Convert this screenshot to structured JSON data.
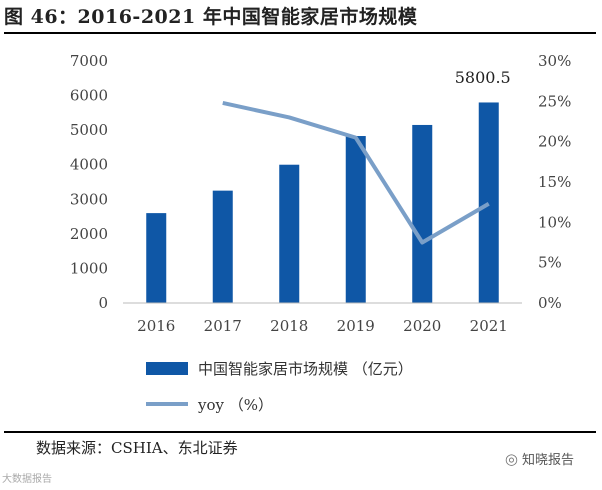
{
  "figure_title": "图 46：2016-2021 年中国智能家居市场规模",
  "source": "数据来源：CSHIA、东北证券",
  "watermark_right": "知晓报告",
  "watermark_left": "大数据报告",
  "colors": {
    "bar": "#0f57a6",
    "line": "#7a9fc8",
    "axis": "#bbbbbb"
  },
  "chart_data": {
    "type": "bar",
    "categories": [
      "2016",
      "2017",
      "2018",
      "2019",
      "2020",
      "2021"
    ],
    "series": [
      {
        "name": "中国智能家居市场规模 （亿元）",
        "type": "bar",
        "axis": "left",
        "values": [
          2600,
          3250,
          4000,
          4830,
          5150,
          5800.5
        ]
      },
      {
        "name": "yoy （%）",
        "type": "line",
        "axis": "right",
        "values": [
          null,
          24.8,
          23.0,
          20.5,
          7.5,
          12.3
        ]
      }
    ],
    "y_left": {
      "min": 0,
      "max": 7000,
      "ticks": [
        "0",
        "1000",
        "2000",
        "3000",
        "4000",
        "5000",
        "6000",
        "7000"
      ]
    },
    "y_right": {
      "min": 0,
      "max": 30,
      "ticks": [
        "0%",
        "5%",
        "10%",
        "15%",
        "20%",
        "25%",
        "30%"
      ]
    },
    "annotation": {
      "category": "2021",
      "text": "5800.5"
    },
    "legend_position": "bottom",
    "grid": false
  }
}
